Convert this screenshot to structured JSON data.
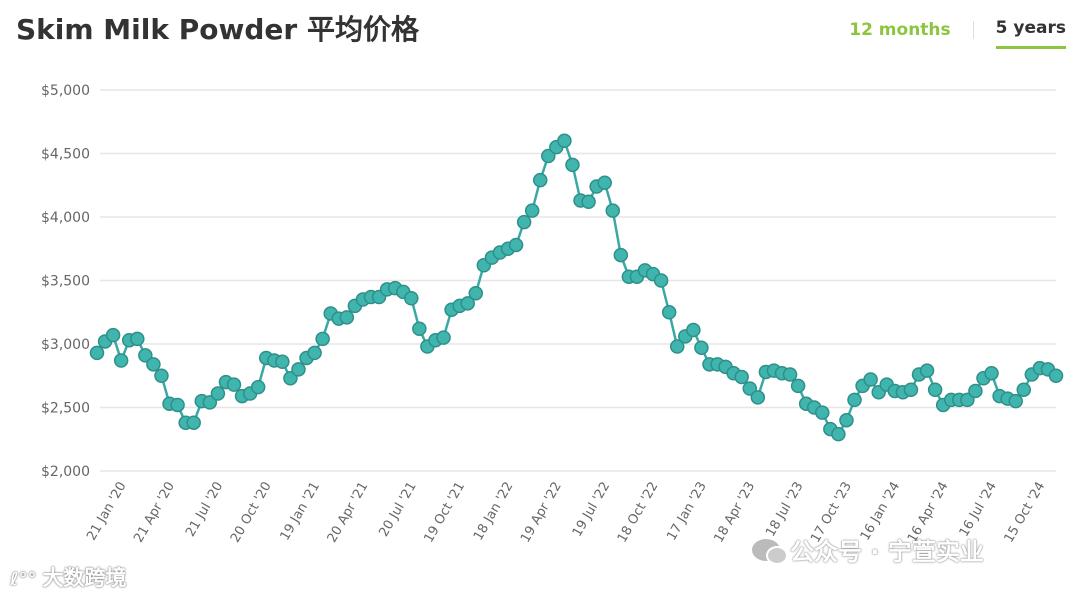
{
  "page": {
    "title": "Skim Milk Powder 平均价格",
    "range_options": [
      "12 months",
      "5 years"
    ],
    "active_range": "5 years"
  },
  "watermarks": {
    "left": "大数跨境",
    "right": "公众号 · 宁萱实业"
  },
  "colors": {
    "line": "#3aa8a3",
    "marker_fill": "#3fb5ae",
    "marker_stroke": "#2f8f8a",
    "grid": "#e6e6e6",
    "axis_text": "#666666",
    "accent": "#8cc63f"
  },
  "chart_data": {
    "type": "line",
    "title": "Skim Milk Powder 平均价格",
    "xlabel": "",
    "ylabel": "",
    "ylim": [
      2000,
      5000
    ],
    "yticks": [
      2000,
      2500,
      3000,
      3500,
      4000,
      4500,
      5000
    ],
    "ytick_labels": [
      "$2,000",
      "$2,500",
      "$3,000",
      "$3,500",
      "$4,000",
      "$4,500",
      "$5,000"
    ],
    "grid": true,
    "x_tick_labels": [
      {
        "label": "21 Jan '20",
        "index": 3
      },
      {
        "label": "21 Apr '20",
        "index": 9
      },
      {
        "label": "21 Jul '20",
        "index": 15
      },
      {
        "label": "20 Oct '20",
        "index": 21
      },
      {
        "label": "19 Jan '21",
        "index": 27
      },
      {
        "label": "20 Apr '21",
        "index": 33
      },
      {
        "label": "20 Jul '21",
        "index": 39
      },
      {
        "label": "19 Oct '21",
        "index": 45
      },
      {
        "label": "18 Jan '22",
        "index": 51
      },
      {
        "label": "19 Apr '22",
        "index": 57
      },
      {
        "label": "19 Jul '22",
        "index": 63
      },
      {
        "label": "18 Oct '22",
        "index": 69
      },
      {
        "label": "17 Jan '23",
        "index": 75
      },
      {
        "label": "18 Apr '23",
        "index": 81
      },
      {
        "label": "18 Jul '23",
        "index": 87
      },
      {
        "label": "17 Oct '23",
        "index": 93
      },
      {
        "label": "16 Jan '24",
        "index": 99
      },
      {
        "label": "16 Apr '24",
        "index": 105
      },
      {
        "label": "16 Jul '24",
        "index": 111
      },
      {
        "label": "15 Oct '24",
        "index": 117
      }
    ],
    "series": [
      {
        "values": [
          2930,
          3020,
          3070,
          2870,
          3030,
          3040,
          2910,
          2840,
          2750,
          2530,
          2520,
          2380,
          2380,
          2550,
          2540,
          2610,
          2700,
          2680,
          2590,
          2610,
          2660,
          2890,
          2870,
          2860,
          2730,
          2800,
          2890,
          2930,
          3040,
          3240,
          3200,
          3210,
          3300,
          3350,
          3370,
          3370,
          3430,
          3440,
          3410,
          3360,
          3120,
          2980,
          3030,
          3050,
          3270,
          3300,
          3320,
          3400,
          3620,
          3680,
          3720,
          3750,
          3780,
          3960,
          4050,
          4290,
          4480,
          4550,
          4600,
          4410,
          4130,
          4120,
          4240,
          4270,
          4050,
          3700,
          3530,
          3530,
          3580,
          3550,
          3500,
          3250,
          2980,
          3060,
          3110,
          2970,
          2840,
          2840,
          2820,
          2770,
          2740,
          2650,
          2580,
          2780,
          2790,
          2770,
          2760,
          2670,
          2530,
          2500,
          2460,
          2330,
          2290,
          2400,
          2560,
          2670,
          2720,
          2620,
          2680,
          2630,
          2620,
          2640,
          2760,
          2790,
          2640,
          2520,
          2560,
          2560,
          2560,
          2630,
          2730,
          2770,
          2590,
          2570,
          2550,
          2640,
          2760,
          2810,
          2800,
          2750
        ]
      }
    ]
  }
}
